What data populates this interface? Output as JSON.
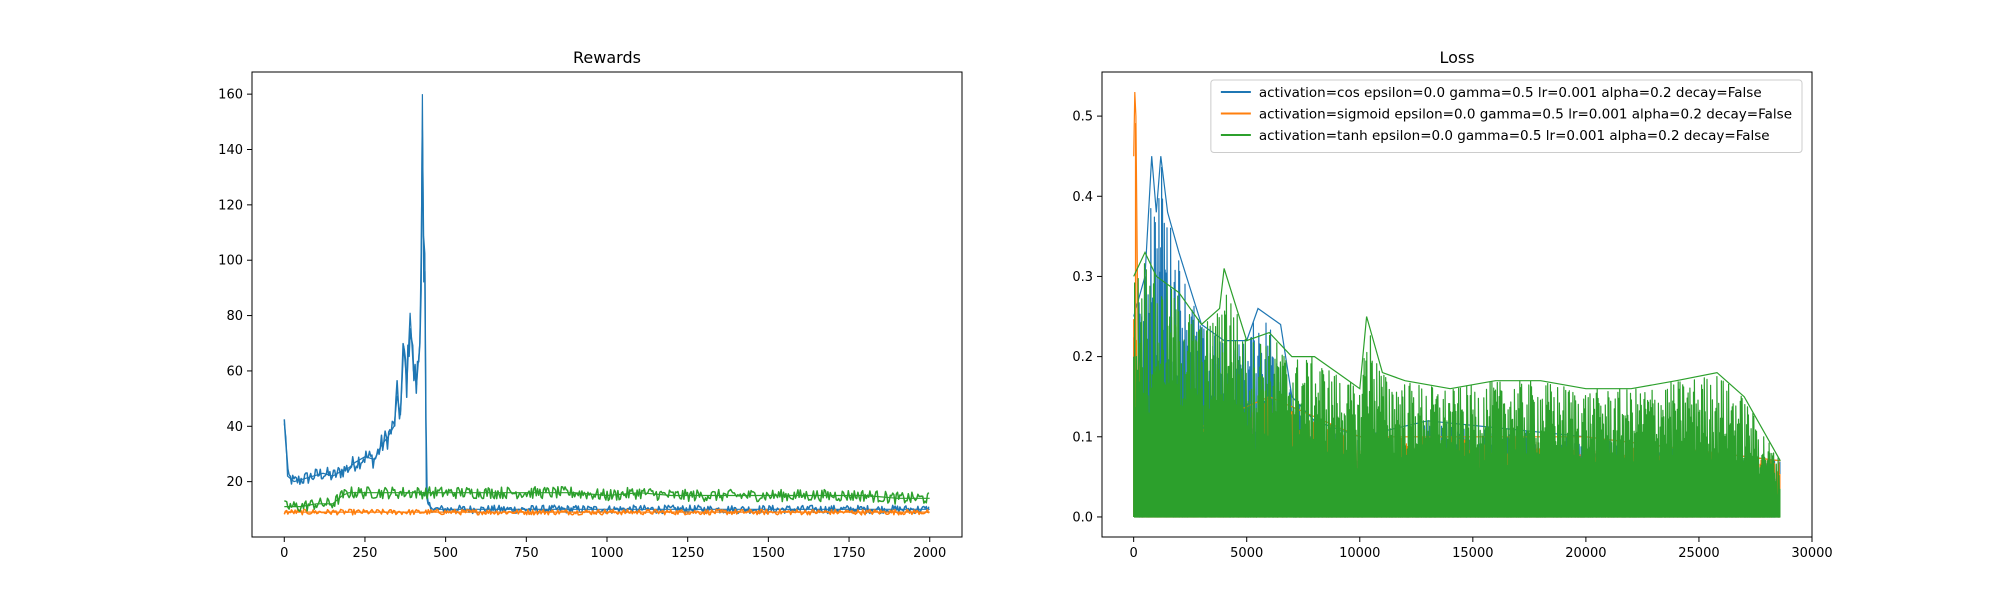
{
  "chart_data": [
    {
      "type": "line",
      "title": "Rewards",
      "xlabel": "",
      "ylabel": "",
      "xlim": [
        -100,
        2100
      ],
      "ylim": [
        0,
        168
      ],
      "xticks": [
        0,
        250,
        500,
        750,
        1000,
        1250,
        1500,
        1750,
        2000
      ],
      "yticks": [
        20,
        40,
        60,
        80,
        100,
        120,
        140,
        160
      ],
      "grid": false,
      "series": [
        {
          "color": "#1f77b4",
          "x": [
            0,
            5,
            10,
            30,
            60,
            90,
            120,
            150,
            180,
            200,
            220,
            250,
            280,
            300,
            320,
            340,
            350,
            360,
            370,
            380,
            390,
            400,
            410,
            420,
            425,
            428,
            432,
            436,
            440,
            445,
            460,
            500,
            600,
            700,
            800,
            900,
            1000,
            1200,
            1400,
            1600,
            1800,
            2000
          ],
          "values": [
            41,
            36,
            22,
            20,
            21,
            22,
            23,
            22,
            24,
            25,
            27,
            29,
            28,
            33,
            36,
            40,
            51,
            44,
            69,
            55,
            81,
            60,
            55,
            70,
            110,
            160,
            92,
            96,
            15,
            12,
            10,
            10,
            10,
            10,
            10,
            10,
            10,
            10,
            10,
            10,
            10,
            10
          ]
        },
        {
          "color": "#ff7f0e",
          "x": [
            0,
            100,
            200,
            300,
            400,
            500,
            600,
            700,
            800,
            900,
            1000,
            1100,
            1200,
            1300,
            1400,
            1500,
            1600,
            1700,
            1800,
            1900,
            2000
          ],
          "values": [
            9,
            9,
            9,
            9,
            9,
            9,
            9,
            9,
            9,
            9,
            9,
            9,
            9,
            9,
            9,
            9,
            9,
            9,
            9,
            9,
            9
          ]
        },
        {
          "color": "#2ca02c",
          "x": [
            0,
            50,
            100,
            150,
            180,
            200,
            250,
            300,
            400,
            500,
            600,
            700,
            800,
            900,
            1000,
            1100,
            1200,
            1300,
            1400,
            1500,
            1600,
            1700,
            1800,
            1900,
            2000
          ],
          "values": [
            11,
            11,
            12,
            12,
            15,
            16,
            16,
            16,
            16,
            16,
            16,
            16,
            16,
            16,
            15,
            16,
            15,
            15,
            15,
            15,
            15,
            15,
            15,
            14,
            14
          ]
        }
      ]
    },
    {
      "type": "line",
      "title": "Loss",
      "xlabel": "",
      "ylabel": "",
      "xlim": [
        -1400,
        30000
      ],
      "ylim": [
        -0.025,
        0.555
      ],
      "xticks": [
        0,
        5000,
        10000,
        15000,
        20000,
        25000,
        30000
      ],
      "yticks": [
        0.0,
        0.1,
        0.2,
        0.3,
        0.4,
        0.5
      ],
      "grid": false,
      "legend": {
        "position": "upper right",
        "entries": [
          {
            "label": "activation=cos epsilon=0.0 gamma=0.5 lr=0.001 alpha=0.2 decay=False",
            "color": "#1f77b4"
          },
          {
            "label": "activation=sigmoid epsilon=0.0 gamma=0.5 lr=0.001 alpha=0.2 decay=False",
            "color": "#ff7f0e"
          },
          {
            "label": "activation=tanh epsilon=0.0 gamma=0.5 lr=0.001 alpha=0.2 decay=False",
            "color": "#2ca02c"
          }
        ]
      },
      "series": [
        {
          "color": "#1f77b4",
          "x": [
            0,
            500,
            800,
            1000,
            1200,
            1500,
            2000,
            3000,
            4000,
            5000,
            5500,
            6000,
            6500,
            7000,
            8000,
            10000,
            13000,
            20000,
            28600
          ],
          "values": [
            0.25,
            0.3,
            0.45,
            0.38,
            0.45,
            0.38,
            0.33,
            0.24,
            0.22,
            0.22,
            0.26,
            0.25,
            0.24,
            0.15,
            0.12,
            0.1,
            0.12,
            0.1,
            0.07
          ]
        },
        {
          "color": "#ff7f0e",
          "x": [
            0,
            50,
            100,
            200,
            300,
            500,
            1000,
            2000,
            6000,
            10000,
            20000,
            28600
          ],
          "values": [
            0.45,
            0.53,
            0.5,
            0.2,
            0.15,
            0.12,
            0.1,
            0.1,
            0.15,
            0.1,
            0.1,
            0.07
          ]
        },
        {
          "color": "#2ca02c",
          "x": [
            0,
            500,
            1000,
            2000,
            3000,
            3800,
            4000,
            5000,
            6000,
            7000,
            8000,
            9000,
            10000,
            10300,
            11000,
            12000,
            14000,
            16000,
            18000,
            20000,
            22000,
            24000,
            25800,
            27000,
            28600
          ],
          "values": [
            0.3,
            0.33,
            0.3,
            0.28,
            0.24,
            0.26,
            0.31,
            0.22,
            0.23,
            0.2,
            0.2,
            0.18,
            0.16,
            0.25,
            0.18,
            0.17,
            0.16,
            0.17,
            0.17,
            0.16,
            0.16,
            0.17,
            0.18,
            0.15,
            0.07
          ]
        }
      ]
    }
  ]
}
